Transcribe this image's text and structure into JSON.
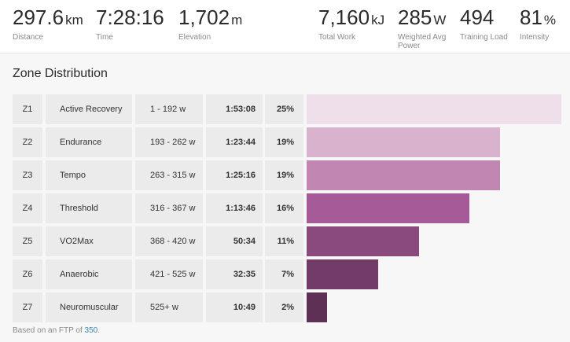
{
  "stats": [
    {
      "value": "297.6",
      "unit": "km",
      "label": "Distance"
    },
    {
      "value": "7:28:16",
      "unit": "",
      "label": "Time"
    },
    {
      "value": "1,702",
      "unit": "m",
      "label": "Elevation"
    },
    {
      "value": "7,160",
      "unit": "kJ",
      "label": "Total Work"
    },
    {
      "value": "285",
      "unit": "W",
      "label": "Weighted Avg Power"
    },
    {
      "value": "494",
      "unit": "",
      "label": "Training Load"
    },
    {
      "value": "81",
      "unit": "%",
      "label": "Intensity"
    }
  ],
  "zones": {
    "title": "Zone Distribution",
    "rows": [
      {
        "id": "Z1",
        "name": "Active Recovery",
        "range": "1 - 192 w",
        "time": "1:53:08",
        "pct": "25%",
        "share": 0.25,
        "color": "#efdfea"
      },
      {
        "id": "Z2",
        "name": "Endurance",
        "range": "193 - 262 w",
        "time": "1:23:44",
        "pct": "19%",
        "share": 0.19,
        "color": "#d9b3cd"
      },
      {
        "id": "Z3",
        "name": "Tempo",
        "range": "263 - 315 w",
        "time": "1:25:16",
        "pct": "19%",
        "share": 0.19,
        "color": "#c187b2"
      },
      {
        "id": "Z4",
        "name": "Threshold",
        "range": "316 - 367 w",
        "time": "1:13:46",
        "pct": "16%",
        "share": 0.16,
        "color": "#a65b98"
      },
      {
        "id": "Z5",
        "name": "VO2Max",
        "range": "368 - 420 w",
        "time": "50:34",
        "pct": "11%",
        "share": 0.11,
        "color": "#8b4a7e"
      },
      {
        "id": "Z6",
        "name": "Anaerobic",
        "range": "421 - 525 w",
        "time": "32:35",
        "pct": "7%",
        "share": 0.07,
        "color": "#733c68"
      },
      {
        "id": "Z7",
        "name": "Neuromuscular",
        "range": "525+ w",
        "time": "10:49",
        "pct": "2%",
        "share": 0.02,
        "color": "#5e3055"
      }
    ]
  },
  "footer": {
    "prefix": "Based on an FTP of",
    "ftp": "350",
    "suffix": "."
  }
}
